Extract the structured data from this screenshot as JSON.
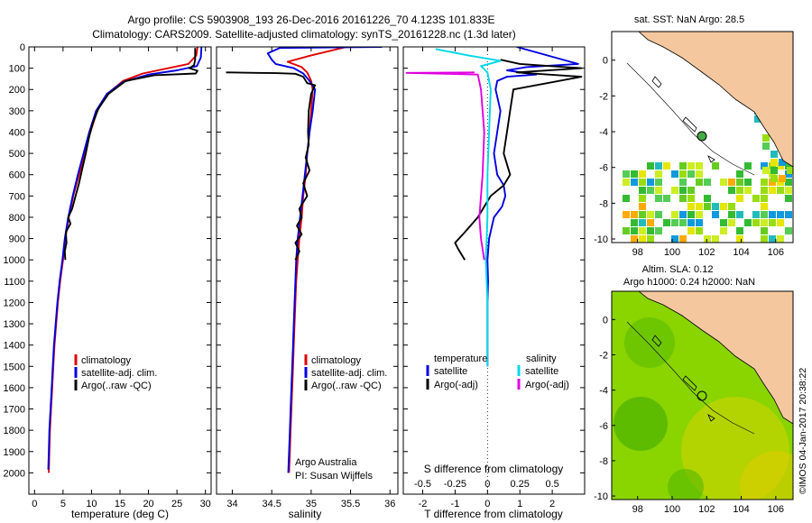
{
  "header": {
    "title_line1": "Argo profile: CS 5903908_193 26-Dec-2016 20161226_70 4.123S 101.833E",
    "title_line2": "Climatology: CARS2009. Satellite-adjusted climatology: synTS_20161228.nc (1.3d later)"
  },
  "colors": {
    "climatology": "#e00000",
    "satellite": "#0000e0",
    "argo": "#000000",
    "salinity_sat": "#00d8e8",
    "salinity_argo": "#e000e0",
    "land": "#f5c79e",
    "sla_field": "#8ad400"
  },
  "chart_data": [
    {
      "id": "temperature",
      "type": "line",
      "xlabel": "temperature (deg C)",
      "ylabel": "",
      "xlim": [
        -1,
        31
      ],
      "ylim": [
        2100,
        0
      ],
      "xticks": [
        0,
        5,
        10,
        15,
        20,
        25,
        30
      ],
      "xtick_labels": [
        "0",
        "5",
        "10",
        "15",
        "20",
        "25",
        "30"
      ],
      "yticks": [
        0,
        100,
        200,
        300,
        400,
        500,
        600,
        700,
        800,
        900,
        1000,
        1100,
        1200,
        1300,
        1400,
        1500,
        1600,
        1700,
        1800,
        1900,
        2000
      ],
      "ytick_labels": [
        "0",
        "100",
        "200",
        "300",
        "400",
        "500",
        "600",
        "700",
        "800",
        "900",
        "1000",
        "1100",
        "1200",
        "1300",
        "1400",
        "1500",
        "1600",
        "1700",
        "1800",
        "1900",
        "2000"
      ],
      "legend": [
        "climatology",
        "satellite-adj. clim.",
        "Argo(..raw -QC)"
      ],
      "series": [
        {
          "name": "climatology",
          "color": "#e00000",
          "points": [
            [
              28.6,
              0
            ],
            [
              28.4,
              40
            ],
            [
              27.0,
              80
            ],
            [
              23.5,
              100
            ],
            [
              19.0,
              125
            ],
            [
              15.5,
              160
            ],
            [
              12.8,
              220
            ],
            [
              11.0,
              300
            ],
            [
              9.8,
              400
            ],
            [
              8.8,
              500
            ],
            [
              7.8,
              600
            ],
            [
              6.8,
              700
            ],
            [
              6.0,
              800
            ],
            [
              5.4,
              900
            ],
            [
              5.0,
              1000
            ],
            [
              4.5,
              1100
            ],
            [
              4.1,
              1200
            ],
            [
              3.8,
              1300
            ],
            [
              3.5,
              1400
            ],
            [
              3.3,
              1500
            ],
            [
              3.1,
              1600
            ],
            [
              2.9,
              1700
            ],
            [
              2.7,
              1800
            ],
            [
              2.6,
              1900
            ],
            [
              2.5,
              2000
            ]
          ]
        },
        {
          "name": "satellite-adj. clim.",
          "color": "#0000e0",
          "points": [
            [
              29.3,
              0
            ],
            [
              29.2,
              50
            ],
            [
              28.5,
              90
            ],
            [
              25.0,
              110
            ],
            [
              20.0,
              130
            ],
            [
              15.5,
              165
            ],
            [
              12.7,
              220
            ],
            [
              10.8,
              300
            ],
            [
              9.6,
              400
            ],
            [
              8.6,
              500
            ],
            [
              7.6,
              600
            ],
            [
              6.7,
              700
            ],
            [
              5.9,
              800
            ],
            [
              5.3,
              900
            ],
            [
              4.9,
              1000
            ],
            [
              4.4,
              1100
            ],
            [
              4.0,
              1200
            ],
            [
              3.7,
              1300
            ],
            [
              3.4,
              1400
            ],
            [
              3.2,
              1500
            ],
            [
              3.0,
              1600
            ],
            [
              2.8,
              1700
            ],
            [
              2.6,
              1800
            ],
            [
              2.5,
              1900
            ],
            [
              2.4,
              1985
            ]
          ]
        },
        {
          "name": "Argo(..raw -QC)",
          "color": "#000000",
          "points": [
            [
              28.2,
              5
            ],
            [
              28.2,
              60
            ],
            [
              28.0,
              85
            ],
            [
              27.2,
              100
            ],
            [
              28.6,
              112
            ],
            [
              28.3,
              125
            ],
            [
              21.0,
              133
            ],
            [
              16.0,
              160
            ],
            [
              13.0,
              220
            ],
            [
              11.2,
              290
            ],
            [
              10.2,
              360
            ],
            [
              9.6,
              420
            ],
            [
              9.0,
              500
            ],
            [
              8.4,
              570
            ],
            [
              7.8,
              640
            ],
            [
              7.2,
              700
            ],
            [
              6.6,
              760
            ],
            [
              5.9,
              800
            ],
            [
              6.3,
              830
            ],
            [
              5.5,
              870
            ],
            [
              5.6,
              920
            ],
            [
              5.3,
              960
            ],
            [
              5.4,
              1000
            ]
          ]
        }
      ]
    },
    {
      "id": "salinity",
      "type": "line",
      "xlabel": "salinity",
      "ylabel": "",
      "xlim": [
        33.8,
        36.1
      ],
      "ylim": [
        2100,
        0
      ],
      "xticks": [
        34,
        34.5,
        35,
        35.5,
        36
      ],
      "xtick_labels": [
        "34",
        "34.5",
        "35",
        "35.5",
        "36"
      ],
      "legend": [
        "climatology",
        "satellite-adj. clim.",
        "Argo(..raw -QC)"
      ],
      "annotations": [
        "Argo Australia",
        "PI: Susan Wijffels"
      ],
      "series": [
        {
          "name": "climatology",
          "color": "#e00000",
          "points": [
            [
              35.45,
              0
            ],
            [
              35.0,
              40
            ],
            [
              34.7,
              70
            ],
            [
              34.88,
              95
            ],
            [
              34.95,
              120
            ],
            [
              35.0,
              160
            ],
            [
              35.02,
              200
            ],
            [
              35.0,
              300
            ],
            [
              34.98,
              400
            ],
            [
              34.95,
              500
            ],
            [
              34.93,
              600
            ],
            [
              34.9,
              700
            ],
            [
              34.88,
              800
            ],
            [
              34.85,
              900
            ],
            [
              34.83,
              1000
            ],
            [
              34.81,
              1100
            ],
            [
              34.8,
              1200
            ],
            [
              34.79,
              1300
            ],
            [
              34.78,
              1400
            ],
            [
              34.77,
              1500
            ],
            [
              34.76,
              1600
            ],
            [
              34.75,
              1700
            ],
            [
              34.74,
              1800
            ],
            [
              34.73,
              1900
            ],
            [
              34.72,
              2000
            ]
          ]
        },
        {
          "name": "satellite-adj. clim.",
          "color": "#0000e0",
          "points": [
            [
              35.9,
              0
            ],
            [
              34.6,
              5
            ],
            [
              34.45,
              30
            ],
            [
              34.5,
              60
            ],
            [
              34.55,
              80
            ],
            [
              34.78,
              100
            ],
            [
              34.9,
              125
            ],
            [
              34.98,
              160
            ],
            [
              35.05,
              200
            ],
            [
              35.02,
              300
            ],
            [
              34.98,
              400
            ],
            [
              34.95,
              500
            ],
            [
              34.92,
              600
            ],
            [
              34.89,
              700
            ],
            [
              34.86,
              800
            ],
            [
              34.83,
              900
            ],
            [
              34.81,
              1000
            ],
            [
              34.8,
              1100
            ],
            [
              34.79,
              1200
            ],
            [
              34.78,
              1300
            ],
            [
              34.77,
              1400
            ],
            [
              34.76,
              1500
            ],
            [
              34.75,
              1600
            ],
            [
              34.74,
              1700
            ],
            [
              34.73,
              1800
            ],
            [
              34.72,
              1900
            ],
            [
              34.71,
              2000
            ]
          ]
        },
        {
          "name": "Argo(..raw -QC)",
          "color": "#000000",
          "points": [
            [
              33.92,
              120
            ],
            [
              34.3,
              122
            ],
            [
              34.55,
              123
            ],
            [
              34.8,
              126
            ],
            [
              34.9,
              140
            ],
            [
              34.95,
              170
            ],
            [
              35.05,
              180
            ],
            [
              35.0,
              220
            ],
            [
              34.97,
              300
            ],
            [
              34.96,
              400
            ],
            [
              34.97,
              460
            ],
            [
              34.93,
              520
            ],
            [
              34.98,
              580
            ],
            [
              34.9,
              640
            ],
            [
              34.95,
              700
            ],
            [
              34.85,
              760
            ],
            [
              34.88,
              800
            ],
            [
              34.82,
              840
            ],
            [
              34.88,
              880
            ],
            [
              34.8,
              920
            ],
            [
              34.85,
              960
            ],
            [
              34.8,
              1000
            ]
          ]
        }
      ]
    },
    {
      "id": "difference",
      "type": "line",
      "xlabel": "T difference from climatology",
      "xlim": [
        -2.6,
        3.0
      ],
      "ylim": [
        2100,
        0
      ],
      "xticks": [
        -2,
        -1,
        0,
        1,
        2
      ],
      "xtick_labels": [
        "-2",
        "-1",
        "0",
        "1",
        "2"
      ],
      "top_axis_label": "S difference from climatology",
      "top_ticks": [
        -0.5,
        -0.25,
        0,
        0.25,
        0.5
      ],
      "top_tick_labels": [
        "-0.5",
        "-0.25",
        "0",
        "0.25",
        "0.5"
      ],
      "legend_groups": [
        {
          "heading": "temperature",
          "entries": [
            "satellite",
            "Argo(-adj)"
          ]
        },
        {
          "heading": "salinity",
          "entries": [
            "satellite",
            "Argo(-adj)"
          ]
        }
      ],
      "series": [
        {
          "name": "temperature satellite",
          "color": "#0000e0",
          "points": [
            [
              0.9,
              0
            ],
            [
              2.8,
              80
            ],
            [
              1.2,
              95
            ],
            [
              0.6,
              110
            ],
            [
              1.5,
              130
            ],
            [
              0.6,
              140
            ],
            [
              0.3,
              160
            ],
            [
              0.25,
              200
            ],
            [
              0.4,
              300
            ],
            [
              0.3,
              400
            ],
            [
              0.2,
              500
            ],
            [
              0.3,
              600
            ],
            [
              0.5,
              650
            ],
            [
              0.55,
              700
            ],
            [
              0.45,
              750
            ],
            [
              0.2,
              800
            ],
            [
              0.05,
              900
            ],
            [
              0.0,
              1000
            ],
            [
              0.02,
              1100
            ],
            [
              0.0,
              1200
            ],
            [
              0.0,
              1400
            ],
            [
              0.0,
              1500
            ]
          ]
        },
        {
          "name": "temperature Argo(-adj)",
          "color": "#000000",
          "points": [
            [
              0.4,
              60
            ],
            [
              1.0,
              80
            ],
            [
              2.9,
              100
            ],
            [
              0.9,
              120
            ],
            [
              2.9,
              140
            ],
            [
              0.8,
              200
            ],
            [
              0.7,
              300
            ],
            [
              0.6,
              400
            ],
            [
              0.5,
              500
            ],
            [
              0.7,
              600
            ],
            [
              0.5,
              650
            ],
            [
              0.1,
              700
            ],
            [
              -0.3,
              800
            ],
            [
              -0.7,
              870
            ],
            [
              -1.0,
              920
            ],
            [
              -0.9,
              950
            ],
            [
              -0.7,
              1000
            ]
          ]
        },
        {
          "name": "salinity satellite",
          "color": "#00d8e8",
          "points": [
            [
              -1.6,
              10
            ],
            [
              -0.6,
              40
            ],
            [
              0.4,
              65
            ],
            [
              -0.2,
              90
            ],
            [
              0.0,
              120
            ],
            [
              0.1,
              200
            ],
            [
              0.05,
              400
            ],
            [
              0.0,
              600
            ],
            [
              0.0,
              800
            ],
            [
              -0.05,
              1000
            ],
            [
              0.0,
              1200
            ],
            [
              0.0,
              1500
            ]
          ]
        },
        {
          "name": "salinity Argo(-adj)",
          "color": "#e000e0",
          "points": [
            [
              -0.4,
              120
            ],
            [
              -2.5,
              122
            ],
            [
              -0.3,
              130
            ],
            [
              -0.2,
              200
            ],
            [
              -0.1,
              400
            ],
            [
              -0.15,
              600
            ],
            [
              -0.25,
              800
            ],
            [
              -0.2,
              900
            ],
            [
              -0.1,
              1000
            ]
          ]
        }
      ]
    },
    {
      "id": "sst_map",
      "type": "heatmap",
      "title": "sat. SST: NaN Argo: 28.5",
      "xlim": [
        96.5,
        107
      ],
      "ylim": [
        -10.2,
        1.6
      ],
      "xticks": [
        98,
        100,
        102,
        104,
        106
      ],
      "xtick_labels": [
        "98",
        "100",
        "102",
        "104",
        "106"
      ],
      "yticks": [
        0,
        -2,
        -4,
        -6,
        -8,
        -10
      ],
      "ytick_labels": [
        "0",
        "-2",
        "-4",
        "-6",
        "-8",
        "-10"
      ],
      "argo_position": [
        101.833,
        -4.123
      ]
    },
    {
      "id": "sla_map",
      "type": "heatmap",
      "title_line1": "Altim. SLA: 0.12",
      "title_line2": "Argo h1000: 0.24 h2000: NaN",
      "xlim": [
        96.5,
        107
      ],
      "ylim": [
        -10.2,
        1.6
      ],
      "xticks": [
        98,
        100,
        102,
        104,
        106
      ],
      "xtick_labels": [
        "98",
        "100",
        "102",
        "104",
        "106"
      ],
      "yticks": [
        0,
        -2,
        -4,
        -6,
        -8,
        -10
      ],
      "ytick_labels": [
        "0",
        "-2",
        "-4",
        "-6",
        "-8",
        "-10"
      ],
      "argo_position": [
        101.833,
        -4.123
      ]
    }
  ],
  "credit": "©IMOS 04-Jan-2017 20:38:22"
}
